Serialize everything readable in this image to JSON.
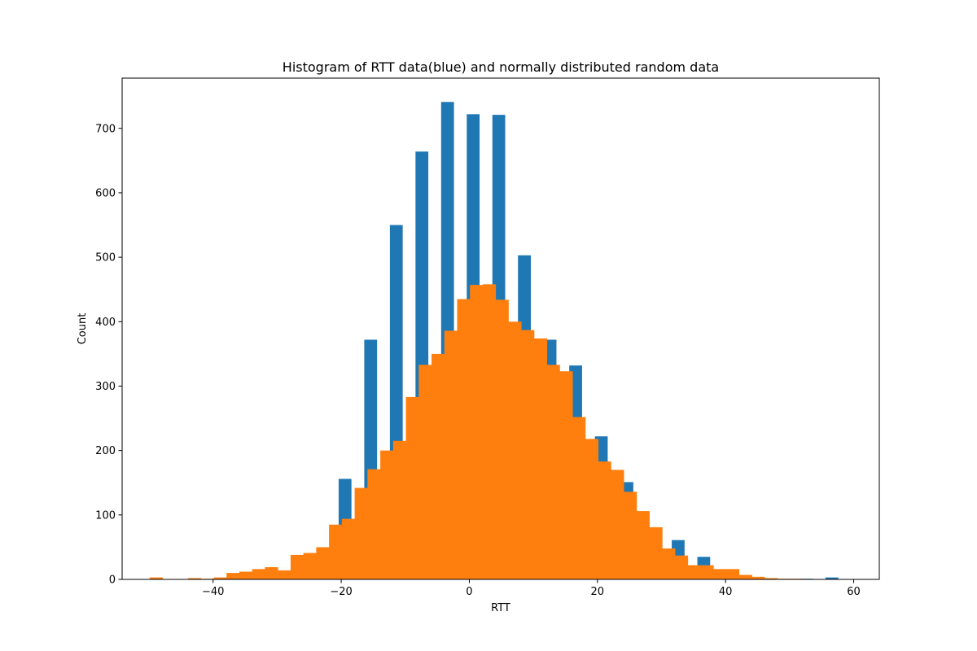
{
  "chart_data": {
    "type": "bar",
    "title": "Histogram of RTT data(blue) and normally distributed random data",
    "xlabel": "RTT",
    "ylabel": "Count",
    "xlim": [
      -54.2,
      64.0
    ],
    "ylim": [
      0,
      778
    ],
    "xticks": [
      -40,
      -20,
      0,
      20,
      40,
      60
    ],
    "yticks": [
      0,
      100,
      200,
      300,
      400,
      500,
      600,
      700
    ],
    "grid": false,
    "legend": "none",
    "series": [
      {
        "color": "#1f77b4",
        "bins": [
          {
            "x0": -20.4,
            "x1": -18.4,
            "value": 156
          },
          {
            "x0": -16.4,
            "x1": -14.4,
            "value": 372
          },
          {
            "x0": -12.4,
            "x1": -10.4,
            "value": 550
          },
          {
            "x0": -8.4,
            "x1": -6.4,
            "value": 664
          },
          {
            "x0": -4.4,
            "x1": -2.4,
            "value": 741
          },
          {
            "x0": -0.4,
            "x1": 1.6,
            "value": 722
          },
          {
            "x0": 3.6,
            "x1": 5.6,
            "value": 721
          },
          {
            "x0": 7.6,
            "x1": 9.6,
            "value": 503
          },
          {
            "x0": 11.6,
            "x1": 13.6,
            "value": 372
          },
          {
            "x0": 15.6,
            "x1": 17.6,
            "value": 332
          },
          {
            "x0": 19.6,
            "x1": 21.6,
            "value": 222
          },
          {
            "x0": 23.6,
            "x1": 25.6,
            "value": 151
          },
          {
            "x0": 27.6,
            "x1": 29.6,
            "value": 78
          },
          {
            "x0": 31.6,
            "x1": 33.6,
            "value": 61
          },
          {
            "x0": 35.6,
            "x1": 37.6,
            "value": 35
          },
          {
            "x0": 39.6,
            "x1": 41.6,
            "value": 15
          },
          {
            "x0": 51.6,
            "x1": 53.6,
            "value": 1
          },
          {
            "x0": 55.6,
            "x1": 57.6,
            "value": 3
          }
        ]
      },
      {
        "color": "#ff7f0e",
        "bin_start": -49.9,
        "bin_width": 2,
        "values": [
          3,
          0,
          0,
          2,
          1,
          3,
          10,
          12,
          16,
          19,
          14,
          38,
          41,
          50,
          85,
          94,
          142,
          171,
          200,
          215,
          283,
          333,
          350,
          386,
          435,
          457,
          458,
          434,
          400,
          387,
          374,
          333,
          323,
          252,
          218,
          183,
          170,
          136,
          106,
          81,
          48,
          37,
          22,
          22,
          16,
          16,
          7,
          4,
          2,
          1,
          1,
          0,
          0,
          0,
          0
        ]
      }
    ]
  }
}
